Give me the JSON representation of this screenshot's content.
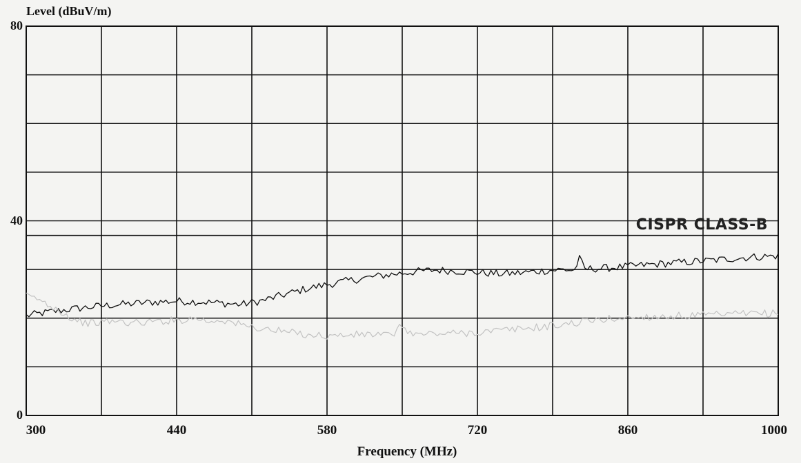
{
  "chart_data": {
    "type": "line",
    "title": "",
    "xlabel": "Frequency (MHz)",
    "ylabel": "Level (dBuV/m)",
    "xlim": [
      300,
      1000
    ],
    "ylim": [
      0,
      80
    ],
    "x_ticks": [
      "300",
      "440",
      "580",
      "720",
      "860",
      "1000"
    ],
    "y_ticks": [
      "0",
      "40",
      "80"
    ],
    "grid": true,
    "limit_line": {
      "label": "CISPR CLASS-B",
      "points": [
        [
          300,
          37
        ],
        [
          1000,
          37
        ]
      ]
    },
    "series": [
      {
        "name": "",
        "color": "#111111",
        "points": [
          [
            300,
            20.5
          ],
          [
            320,
            21.2
          ],
          [
            340,
            21.8
          ],
          [
            360,
            22.3
          ],
          [
            380,
            22.7
          ],
          [
            400,
            23.0
          ],
          [
            420,
            23.3
          ],
          [
            440,
            23.5
          ],
          [
            460,
            23.4
          ],
          [
            480,
            23.1
          ],
          [
            500,
            22.8
          ],
          [
            520,
            23.6
          ],
          [
            540,
            24.8
          ],
          [
            560,
            26.0
          ],
          [
            580,
            26.9
          ],
          [
            600,
            27.7
          ],
          [
            620,
            28.4
          ],
          [
            640,
            29.0
          ],
          [
            660,
            29.5
          ],
          [
            680,
            29.9
          ],
          [
            700,
            29.7
          ],
          [
            720,
            29.4
          ],
          [
            740,
            29.1
          ],
          [
            760,
            29.3
          ],
          [
            780,
            29.7
          ],
          [
            800,
            30.0
          ],
          [
            810,
            29.8
          ],
          [
            815,
            32.2
          ],
          [
            820,
            30.1
          ],
          [
            840,
            30.3
          ],
          [
            860,
            30.6
          ],
          [
            880,
            31.0
          ],
          [
            900,
            31.3
          ],
          [
            920,
            31.6
          ],
          [
            940,
            31.9
          ],
          [
            960,
            32.3
          ],
          [
            980,
            32.6
          ],
          [
            1000,
            32.8
          ]
        ]
      },
      {
        "name": "",
        "color": "#c2c2c2",
        "points": [
          [
            300,
            24.5
          ],
          [
            310,
            24.0
          ],
          [
            320,
            22.8
          ],
          [
            330,
            21.8
          ],
          [
            340,
            20.2
          ],
          [
            350,
            19.3
          ],
          [
            360,
            18.9
          ],
          [
            380,
            19.4
          ],
          [
            400,
            19.0
          ],
          [
            420,
            19.3
          ],
          [
            440,
            19.6
          ],
          [
            460,
            20.0
          ],
          [
            470,
            19.2
          ],
          [
            480,
            19.8
          ],
          [
            500,
            18.6
          ],
          [
            520,
            17.8
          ],
          [
            540,
            17.2
          ],
          [
            560,
            16.7
          ],
          [
            580,
            16.3
          ],
          [
            600,
            16.5
          ],
          [
            620,
            16.7
          ],
          [
            640,
            16.4
          ],
          [
            650,
            18.5
          ],
          [
            660,
            16.6
          ],
          [
            680,
            16.8
          ],
          [
            700,
            16.9
          ],
          [
            720,
            17.1
          ],
          [
            740,
            17.4
          ],
          [
            760,
            17.8
          ],
          [
            780,
            18.2
          ],
          [
            800,
            18.7
          ],
          [
            820,
            19.3
          ],
          [
            840,
            19.8
          ],
          [
            860,
            20.1
          ],
          [
            880,
            20.3
          ],
          [
            900,
            20.4
          ],
          [
            920,
            20.5
          ],
          [
            940,
            20.6
          ],
          [
            960,
            20.8
          ],
          [
            980,
            20.9
          ],
          [
            1000,
            21.0
          ]
        ]
      }
    ]
  }
}
